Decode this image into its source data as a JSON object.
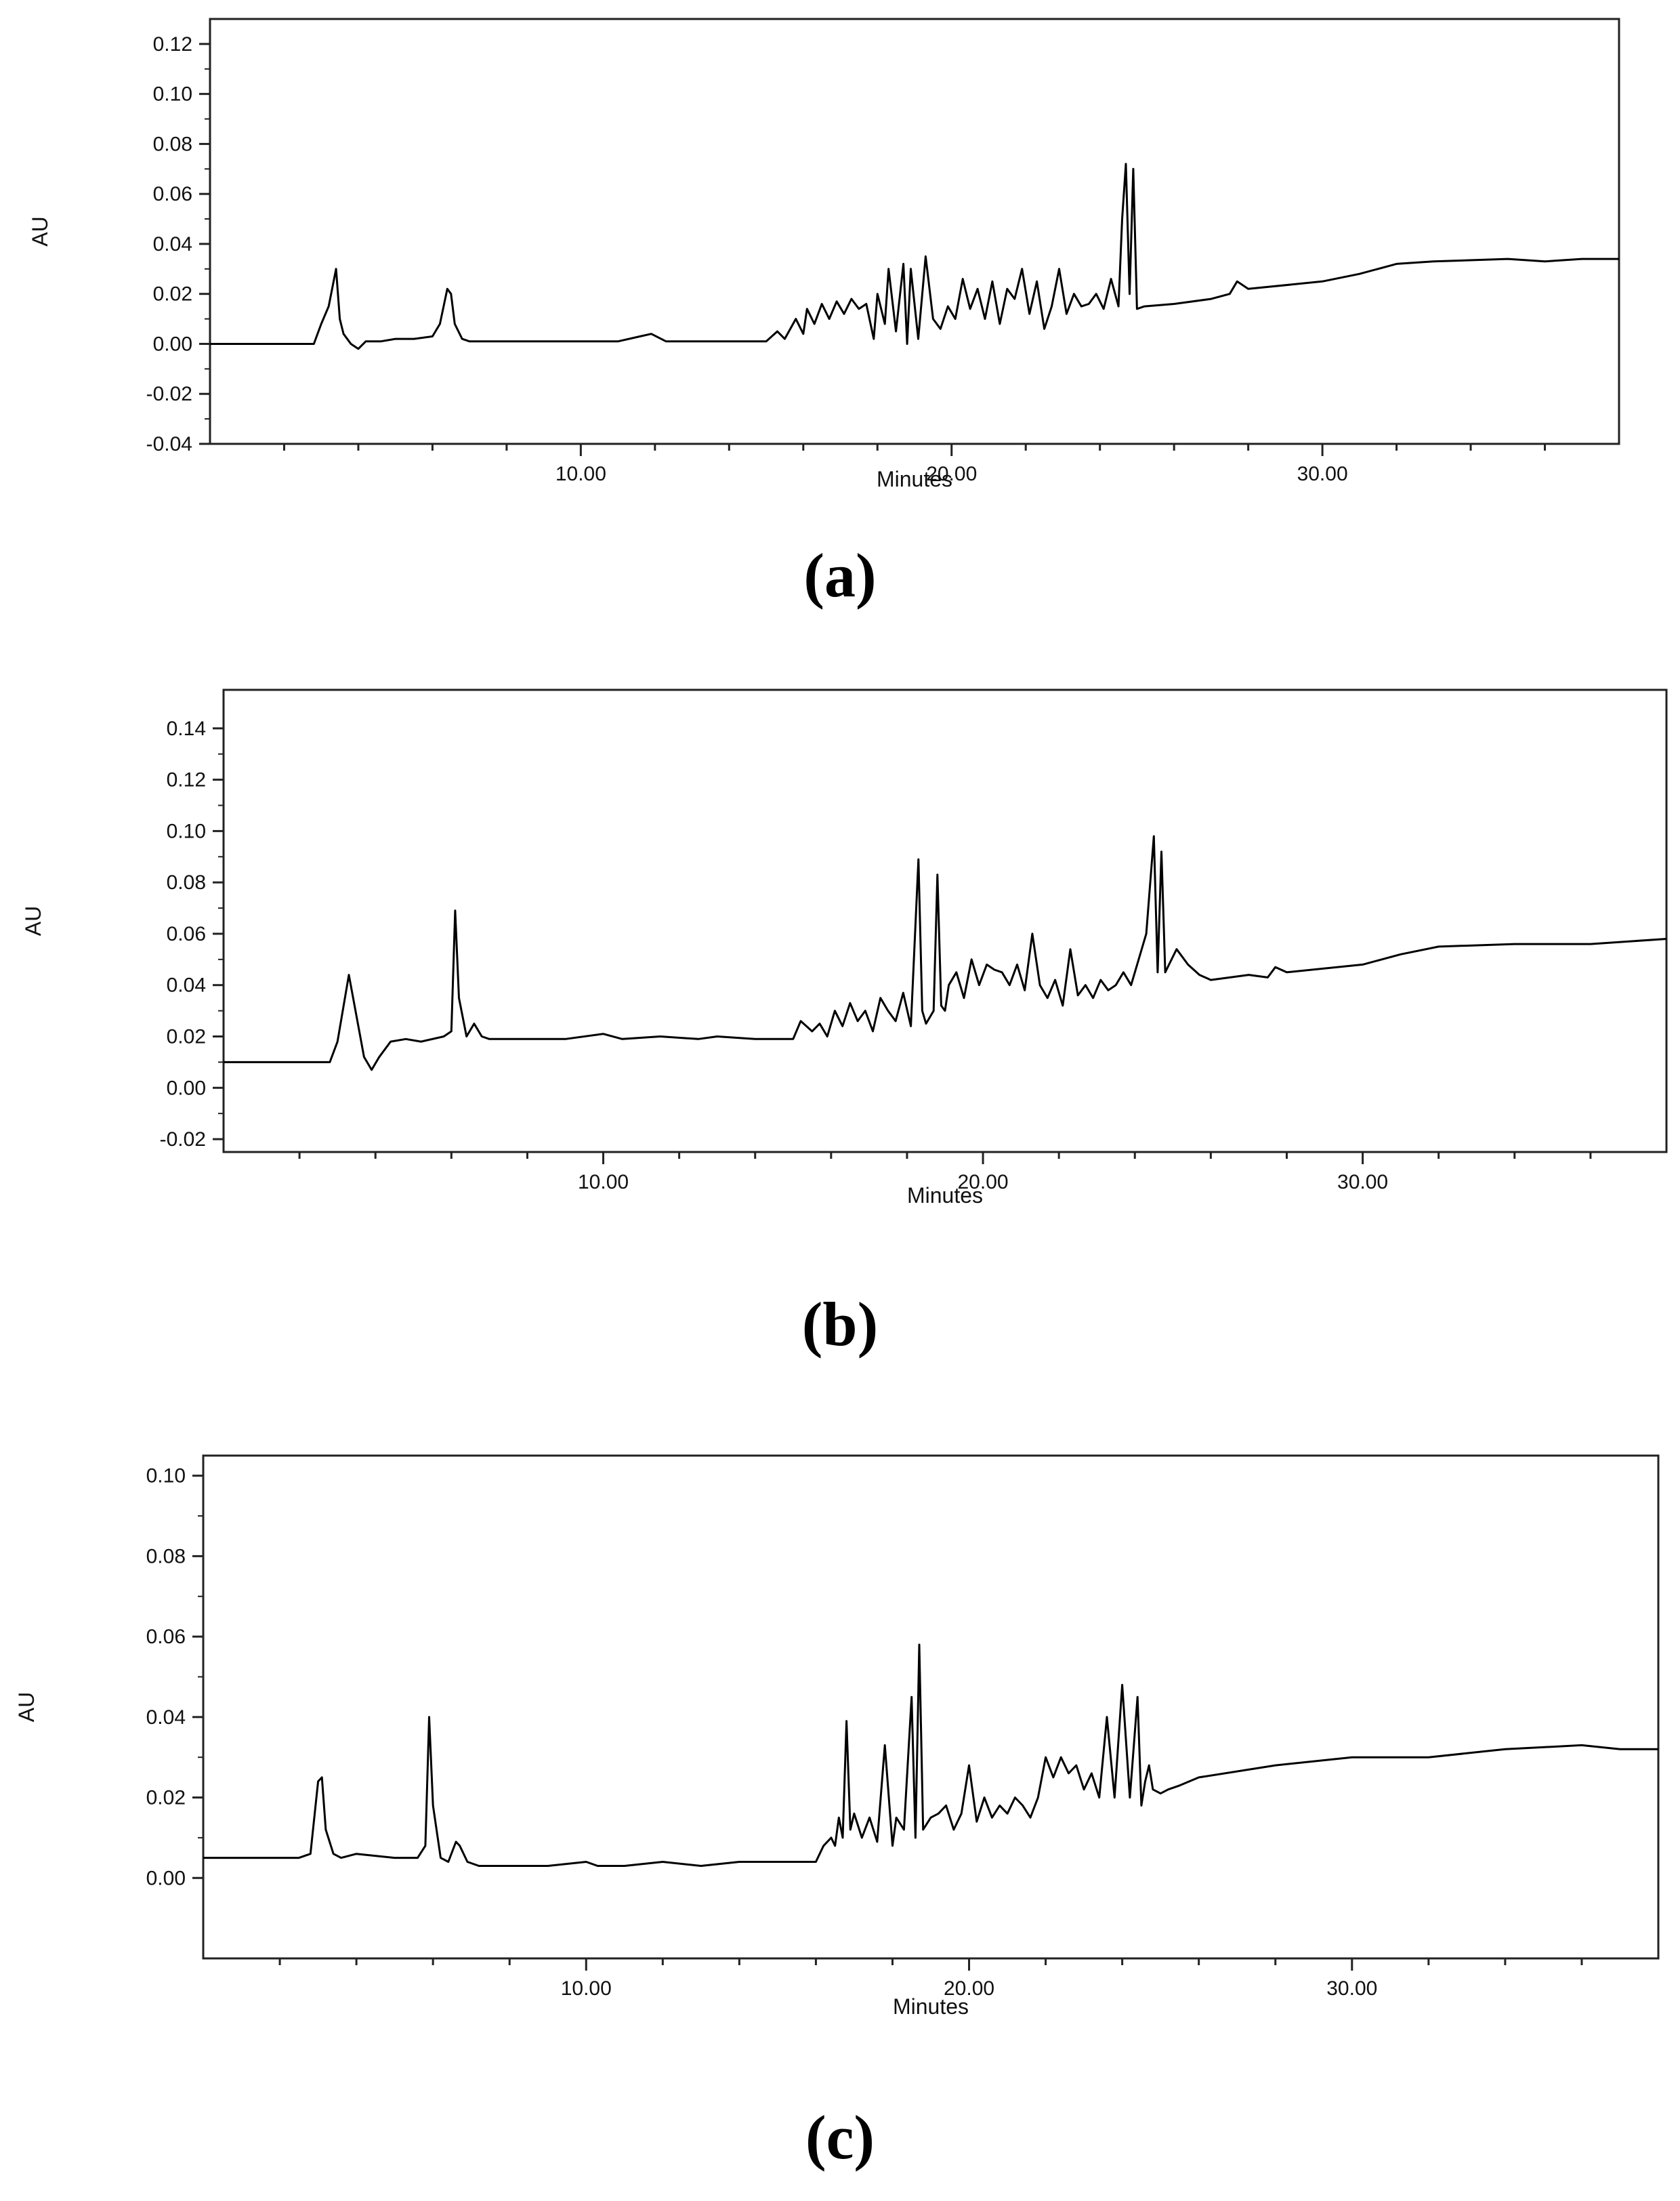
{
  "chart_data": [
    {
      "type": "line",
      "panel_label": "(a)",
      "xlabel": "Minutes",
      "ylabel": "AU",
      "xlim": [
        0,
        38
      ],
      "ylim": [
        -0.04,
        0.13
      ],
      "x_ticks": [
        "10.00",
        "20.00",
        "30.00"
      ],
      "x_tick_values": [
        10,
        20,
        30
      ],
      "y_ticks": [
        "0.12",
        "0.10",
        "0.08",
        "0.06",
        "0.04",
        "0.02",
        "0.00",
        "-0.02",
        "-0.04"
      ],
      "y_tick_values": [
        0.12,
        0.1,
        0.08,
        0.06,
        0.04,
        0.02,
        0.0,
        -0.02,
        -0.04
      ],
      "grid": false,
      "series": [
        {
          "x": [
            0,
            2.8,
            3.0,
            3.2,
            3.4,
            3.5,
            3.6,
            3.8,
            4.0,
            4.2,
            4.6,
            5.0,
            5.5,
            6.0,
            6.2,
            6.4,
            6.5,
            6.6,
            6.8,
            7.0,
            7.5,
            9.0,
            11.0,
            11.6,
            11.9,
            12.3,
            13.0,
            15.0,
            15.3,
            15.5,
            15.8,
            16.0,
            16.1,
            16.3,
            16.5,
            16.7,
            16.9,
            17.1,
            17.3,
            17.5,
            17.7,
            17.9,
            18.0,
            18.2,
            18.3,
            18.5,
            18.7,
            18.8,
            18.9,
            19.1,
            19.3,
            19.5,
            19.7,
            19.9,
            20.1,
            20.3,
            20.5,
            20.7,
            20.9,
            21.1,
            21.3,
            21.5,
            21.7,
            21.9,
            22.1,
            22.3,
            22.5,
            22.7,
            22.9,
            23.1,
            23.3,
            23.5,
            23.7,
            23.9,
            24.1,
            24.3,
            24.5,
            24.6,
            24.7,
            24.8,
            24.9,
            25.0,
            25.2,
            26.0,
            27.0,
            27.5,
            27.7,
            28.0,
            30.0,
            31.0,
            32.0,
            33.0,
            35.0,
            36.0,
            37.0,
            38.0
          ],
          "y": [
            0.0,
            0.0,
            0.008,
            0.015,
            0.03,
            0.01,
            0.004,
            0.0,
            -0.002,
            0.001,
            0.001,
            0.002,
            0.002,
            0.003,
            0.008,
            0.022,
            0.02,
            0.008,
            0.002,
            0.001,
            0.001,
            0.001,
            0.001,
            0.003,
            0.004,
            0.001,
            0.001,
            0.001,
            0.005,
            0.002,
            0.01,
            0.004,
            0.014,
            0.008,
            0.016,
            0.01,
            0.017,
            0.012,
            0.018,
            0.014,
            0.016,
            0.002,
            0.02,
            0.008,
            0.03,
            0.005,
            0.032,
            0.0,
            0.03,
            0.002,
            0.035,
            0.01,
            0.006,
            0.015,
            0.01,
            0.026,
            0.014,
            0.022,
            0.01,
            0.025,
            0.008,
            0.022,
            0.018,
            0.03,
            0.012,
            0.025,
            0.006,
            0.015,
            0.03,
            0.012,
            0.02,
            0.015,
            0.016,
            0.02,
            0.014,
            0.026,
            0.015,
            0.05,
            0.072,
            0.02,
            0.07,
            0.014,
            0.015,
            0.016,
            0.018,
            0.02,
            0.025,
            0.022,
            0.025,
            0.028,
            0.032,
            0.033,
            0.034,
            0.033,
            0.034,
            0.034
          ]
        }
      ]
    },
    {
      "type": "line",
      "panel_label": "(b)",
      "xlabel": "Minutes",
      "ylabel": "AU",
      "xlim": [
        0,
        38
      ],
      "ylim": [
        -0.025,
        0.155
      ],
      "x_ticks": [
        "10.00",
        "20.00",
        "30.00"
      ],
      "x_tick_values": [
        10,
        20,
        30
      ],
      "y_ticks": [
        "0.14",
        "0.12",
        "0.10",
        "0.08",
        "0.06",
        "0.04",
        "0.02",
        "0.00",
        "-0.02"
      ],
      "y_tick_values": [
        0.14,
        0.12,
        0.1,
        0.08,
        0.06,
        0.04,
        0.02,
        0.0,
        -0.02
      ],
      "grid": false,
      "series": [
        {
          "x": [
            0,
            1.0,
            2.8,
            3.0,
            3.3,
            3.5,
            3.7,
            3.9,
            4.1,
            4.4,
            4.8,
            5.2,
            5.8,
            6.0,
            6.1,
            6.2,
            6.4,
            6.6,
            6.8,
            7.0,
            7.5,
            9.0,
            10.0,
            10.5,
            11.5,
            12.5,
            13.0,
            14.0,
            15.0,
            15.2,
            15.5,
            15.7,
            15.9,
            16.1,
            16.3,
            16.5,
            16.7,
            16.9,
            17.1,
            17.3,
            17.5,
            17.7,
            17.9,
            18.1,
            18.3,
            18.4,
            18.5,
            18.7,
            18.8,
            18.9,
            19.0,
            19.1,
            19.3,
            19.5,
            19.7,
            19.9,
            20.1,
            20.3,
            20.5,
            20.7,
            20.9,
            21.1,
            21.3,
            21.5,
            21.7,
            21.9,
            22.1,
            22.3,
            22.5,
            22.7,
            22.9,
            23.1,
            23.3,
            23.5,
            23.7,
            23.9,
            24.1,
            24.3,
            24.5,
            24.6,
            24.7,
            24.8,
            24.9,
            25.1,
            25.4,
            25.7,
            26.0,
            27.0,
            27.5,
            27.7,
            28.0,
            30.0,
            31.0,
            32.0,
            34.0,
            36.0,
            38.0
          ],
          "y": [
            0.01,
            0.01,
            0.01,
            0.018,
            0.044,
            0.028,
            0.012,
            0.007,
            0.012,
            0.018,
            0.019,
            0.018,
            0.02,
            0.022,
            0.069,
            0.035,
            0.02,
            0.025,
            0.02,
            0.019,
            0.019,
            0.019,
            0.021,
            0.019,
            0.02,
            0.019,
            0.02,
            0.019,
            0.019,
            0.026,
            0.022,
            0.025,
            0.02,
            0.03,
            0.024,
            0.033,
            0.026,
            0.03,
            0.022,
            0.035,
            0.03,
            0.026,
            0.037,
            0.024,
            0.089,
            0.03,
            0.025,
            0.03,
            0.083,
            0.032,
            0.03,
            0.04,
            0.045,
            0.035,
            0.05,
            0.04,
            0.048,
            0.046,
            0.045,
            0.04,
            0.048,
            0.038,
            0.06,
            0.04,
            0.035,
            0.042,
            0.032,
            0.054,
            0.036,
            0.04,
            0.035,
            0.042,
            0.038,
            0.04,
            0.045,
            0.04,
            0.05,
            0.06,
            0.098,
            0.045,
            0.092,
            0.045,
            0.048,
            0.054,
            0.048,
            0.044,
            0.042,
            0.044,
            0.043,
            0.047,
            0.045,
            0.048,
            0.052,
            0.055,
            0.056,
            0.056,
            0.058
          ]
        }
      ]
    },
    {
      "type": "line",
      "panel_label": "(c)",
      "xlabel": "Minutes",
      "ylabel": "AU",
      "xlim": [
        0,
        38
      ],
      "ylim": [
        -0.02,
        0.105
      ],
      "x_ticks": [
        "10.00",
        "20.00",
        "30.00"
      ],
      "x_tick_values": [
        10,
        20,
        30
      ],
      "y_ticks": [
        "0.10",
        "0.08",
        "0.06",
        "0.04",
        "0.02",
        "0.00"
      ],
      "y_tick_values": [
        0.1,
        0.08,
        0.06,
        0.04,
        0.02,
        0.0
      ],
      "grid": false,
      "series": [
        {
          "x": [
            0,
            2.5,
            2.8,
            3.0,
            3.1,
            3.2,
            3.4,
            3.6,
            4.0,
            5.0,
            5.6,
            5.8,
            5.9,
            6.0,
            6.2,
            6.4,
            6.6,
            6.7,
            6.9,
            7.2,
            8.0,
            9.0,
            10.0,
            10.3,
            11.0,
            12.0,
            13.0,
            14.0,
            15.0,
            16.0,
            16.2,
            16.4,
            16.5,
            16.6,
            16.7,
            16.8,
            16.9,
            17.0,
            17.2,
            17.4,
            17.6,
            17.8,
            18.0,
            18.1,
            18.3,
            18.5,
            18.6,
            18.7,
            18.8,
            19.0,
            19.2,
            19.4,
            19.6,
            19.8,
            20.0,
            20.2,
            20.4,
            20.6,
            20.8,
            21.0,
            21.2,
            21.4,
            21.6,
            21.8,
            22.0,
            22.2,
            22.4,
            22.6,
            22.8,
            23.0,
            23.2,
            23.4,
            23.6,
            23.8,
            24.0,
            24.2,
            24.4,
            24.5,
            24.6,
            24.7,
            24.8,
            25.0,
            25.2,
            25.5,
            26.0,
            28.0,
            30.0,
            32.0,
            34.0,
            36.0,
            37.0,
            38.0
          ],
          "y": [
            0.005,
            0.005,
            0.006,
            0.024,
            0.025,
            0.012,
            0.006,
            0.005,
            0.006,
            0.005,
            0.005,
            0.008,
            0.04,
            0.018,
            0.005,
            0.004,
            0.009,
            0.008,
            0.004,
            0.003,
            0.003,
            0.003,
            0.004,
            0.003,
            0.003,
            0.004,
            0.003,
            0.004,
            0.004,
            0.004,
            0.008,
            0.01,
            0.008,
            0.015,
            0.01,
            0.039,
            0.012,
            0.016,
            0.01,
            0.015,
            0.009,
            0.033,
            0.008,
            0.015,
            0.012,
            0.045,
            0.01,
            0.058,
            0.012,
            0.015,
            0.016,
            0.018,
            0.012,
            0.016,
            0.028,
            0.014,
            0.02,
            0.015,
            0.018,
            0.016,
            0.02,
            0.018,
            0.015,
            0.02,
            0.03,
            0.025,
            0.03,
            0.026,
            0.028,
            0.022,
            0.026,
            0.02,
            0.04,
            0.02,
            0.048,
            0.02,
            0.045,
            0.018,
            0.024,
            0.028,
            0.022,
            0.021,
            0.022,
            0.023,
            0.025,
            0.028,
            0.03,
            0.03,
            0.032,
            0.033,
            0.032,
            0.032
          ]
        }
      ]
    }
  ]
}
